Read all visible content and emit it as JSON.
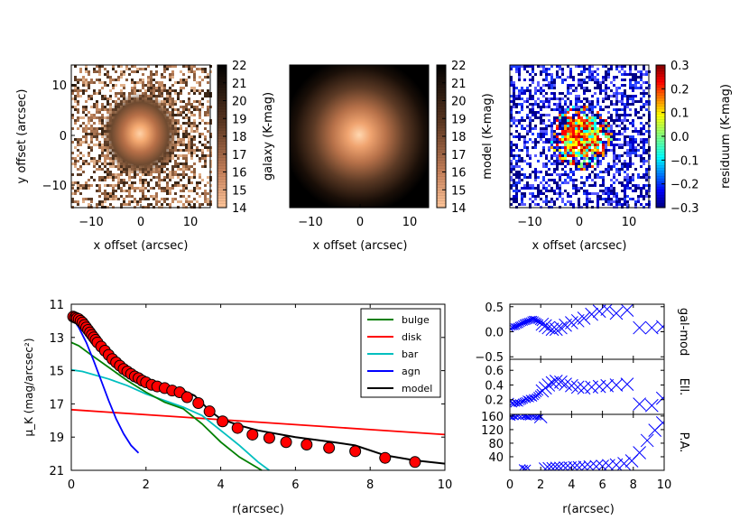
{
  "colors": {
    "bulge": "#007f00",
    "disk": "#ff0000",
    "bar": "#00bfbf",
    "agn": "#0000ff",
    "model": "#000000",
    "data_points": "#ff0000",
    "cross_markers": "#0000ff",
    "copper_light": "#ffc69a",
    "copper_dark": "#5a3620"
  },
  "images": {
    "galaxy": {
      "cbar_label": "galaxy (K-mag)",
      "cbar_ticks": [
        "22",
        "21",
        "20",
        "19",
        "18",
        "17",
        "16",
        "15",
        "14"
      ],
      "xlabel": "x offset (arcsec)",
      "ylabel": "y offset (arcsec)",
      "xticks": [
        "−10",
        "0",
        "10"
      ],
      "yticks": [
        "10",
        "0",
        "−10"
      ]
    },
    "model": {
      "cbar_label": "model (K-mag)",
      "cbar_ticks": [
        "22",
        "21",
        "20",
        "19",
        "18",
        "17",
        "16",
        "15",
        "14"
      ],
      "xlabel": "x offset (arcsec)",
      "xticks": [
        "−10",
        "0",
        "10"
      ]
    },
    "residual": {
      "cbar_label": "residuum (K-mag)",
      "cbar_ticks": [
        "0.3",
        "0.2",
        "0.1",
        "0.0",
        "−0.1",
        "−0.2",
        "−0.3"
      ],
      "xlabel": "x offset (arcsec)",
      "xticks": [
        "−10",
        "0",
        "10"
      ]
    }
  },
  "chart_data": [
    {
      "type": "line",
      "title": "",
      "xlabel": "r(arcsec)",
      "ylabel": "μ_K (mag/arcsec²)",
      "xlim": [
        0,
        10
      ],
      "ylim": [
        21,
        11
      ],
      "xticks": [
        "0",
        "2",
        "4",
        "6",
        "8",
        "10"
      ],
      "yticks": [
        "11",
        "13",
        "15",
        "17",
        "19",
        "21"
      ],
      "legend_position": "top-right",
      "series": [
        {
          "name": "bulge",
          "x": [
            0,
            0.2,
            0.5,
            1,
            1.5,
            2,
            2.5,
            3,
            3.5,
            4,
            4.5,
            5.1
          ],
          "y": [
            13.3,
            13.5,
            14.0,
            14.8,
            15.6,
            16.3,
            16.9,
            17.3,
            18.2,
            19.3,
            20.2,
            21.0
          ]
        },
        {
          "name": "disk",
          "x": [
            0,
            2,
            4,
            6,
            8,
            10
          ],
          "y": [
            17.35,
            17.65,
            17.95,
            18.25,
            18.55,
            18.85
          ]
        },
        {
          "name": "bar",
          "x": [
            0,
            0.3,
            1,
            1.5,
            2,
            2.5,
            3,
            3.5,
            4,
            4.5,
            5,
            5.3
          ],
          "y": [
            14.95,
            15.05,
            15.5,
            15.9,
            16.4,
            16.8,
            17.2,
            17.7,
            18.6,
            19.5,
            20.5,
            21.0
          ]
        },
        {
          "name": "agn",
          "x": [
            0.05,
            0.2,
            0.4,
            0.6,
            0.8,
            1.0,
            1.2,
            1.4,
            1.6,
            1.8
          ],
          "y": [
            11.9,
            12.4,
            13.3,
            14.4,
            15.6,
            16.8,
            17.9,
            18.8,
            19.5,
            19.95
          ]
        },
        {
          "name": "model",
          "x": [
            0,
            0.1,
            0.3,
            0.5,
            0.7,
            1,
            1.3,
            1.6,
            2,
            2.5,
            3,
            3.3,
            3.7,
            4,
            4.5,
            5,
            6,
            7,
            7.6,
            8.4,
            9.2,
            10
          ],
          "y": [
            11.7,
            11.75,
            12.2,
            12.95,
            13.6,
            14.3,
            14.85,
            15.25,
            15.6,
            15.85,
            16.2,
            16.5,
            17.4,
            17.9,
            18.3,
            18.6,
            19.0,
            19.3,
            19.5,
            20.1,
            20.4,
            20.6
          ]
        }
      ],
      "data_points": {
        "name": "data",
        "x": [
          0.05,
          0.1,
          0.15,
          0.2,
          0.25,
          0.3,
          0.35,
          0.4,
          0.45,
          0.5,
          0.55,
          0.6,
          0.65,
          0.7,
          0.8,
          0.9,
          1.0,
          1.1,
          1.2,
          1.3,
          1.4,
          1.5,
          1.6,
          1.7,
          1.8,
          1.9,
          2.0,
          2.15,
          2.3,
          2.5,
          2.7,
          2.9,
          3.1,
          3.4,
          3.7,
          4.05,
          4.45,
          4.85,
          5.3,
          5.75,
          6.3,
          6.9,
          7.6,
          8.4,
          9.2
        ],
        "y": [
          11.75,
          11.8,
          11.85,
          11.9,
          12.0,
          12.1,
          12.25,
          12.4,
          12.55,
          12.7,
          12.85,
          13.0,
          13.15,
          13.3,
          13.55,
          13.8,
          14.05,
          14.3,
          14.5,
          14.7,
          14.9,
          15.05,
          15.2,
          15.35,
          15.45,
          15.6,
          15.7,
          15.85,
          15.95,
          16.05,
          16.2,
          16.3,
          16.6,
          16.95,
          17.45,
          18.05,
          18.45,
          18.85,
          19.05,
          19.3,
          19.45,
          19.65,
          19.85,
          20.25,
          20.5
        ]
      }
    },
    {
      "type": "scatter",
      "ylabel": "gal-mod",
      "xlim": [
        0,
        10
      ],
      "ylim": [
        -0.55,
        0.55
      ],
      "yticks": [
        "0.5",
        "0.0",
        "−0.5"
      ],
      "x": [
        0.05,
        0.15,
        0.25,
        0.35,
        0.45,
        0.55,
        0.65,
        0.75,
        0.85,
        0.95,
        1.05,
        1.15,
        1.25,
        1.35,
        1.45,
        1.55,
        1.65,
        1.75,
        1.85,
        1.95,
        2.1,
        2.3,
        2.5,
        2.75,
        3.0,
        3.3,
        3.6,
        4.0,
        4.4,
        4.8,
        5.3,
        5.8,
        6.3,
        6.9,
        7.6,
        8.4,
        9.2,
        9.9
      ],
      "y": [
        0.06,
        0.09,
        0.1,
        0.1,
        0.11,
        0.13,
        0.14,
        0.16,
        0.18,
        0.19,
        0.2,
        0.21,
        0.22,
        0.24,
        0.25,
        0.25,
        0.24,
        0.22,
        0.2,
        0.18,
        0.15,
        0.12,
        0.08,
        0.05,
        0.05,
        0.08,
        0.13,
        0.18,
        0.22,
        0.27,
        0.35,
        0.41,
        0.45,
        0.37,
        0.43,
        0.08,
        0.08,
        0.1
      ]
    },
    {
      "type": "scatter",
      "ylabel": "Ell.",
      "xlim": [
        0,
        10
      ],
      "ylim": [
        0.0,
        0.75
      ],
      "yticks": [
        "0.6",
        "0.4",
        "0.2"
      ],
      "x": [
        0.05,
        0.15,
        0.25,
        0.35,
        0.45,
        0.55,
        0.65,
        0.75,
        0.85,
        0.95,
        1.05,
        1.15,
        1.25,
        1.35,
        1.45,
        1.55,
        1.65,
        1.75,
        1.85,
        1.95,
        2.1,
        2.3,
        2.5,
        2.75,
        3.0,
        3.3,
        3.6,
        4.0,
        4.4,
        4.8,
        5.3,
        5.8,
        6.3,
        6.9,
        7.6,
        8.4,
        9.2,
        9.9
      ],
      "y": [
        0.18,
        0.15,
        0.14,
        0.16,
        0.15,
        0.16,
        0.15,
        0.17,
        0.18,
        0.19,
        0.21,
        0.2,
        0.22,
        0.21,
        0.23,
        0.22,
        0.24,
        0.26,
        0.28,
        0.3,
        0.32,
        0.36,
        0.4,
        0.43,
        0.45,
        0.44,
        0.41,
        0.39,
        0.37,
        0.36,
        0.37,
        0.38,
        0.39,
        0.4,
        0.41,
        0.14,
        0.12,
        0.22
      ]
    },
    {
      "type": "scatter",
      "ylabel": "P.A.",
      "xlim": [
        0,
        10
      ],
      "ylim": [
        0,
        165
      ],
      "yticks": [
        "160",
        "120",
        "80",
        "40"
      ],
      "x": [
        0.05,
        0.15,
        0.25,
        0.35,
        0.5,
        0.7,
        0.9,
        1.0,
        1.1,
        1.2,
        1.35,
        1.5,
        1.65,
        1.8,
        1.9,
        2.0,
        0.8,
        0.95,
        1.15,
        2.3,
        2.55,
        2.8,
        3.05,
        3.3,
        3.6,
        3.9,
        4.2,
        4.5,
        4.85,
        5.2,
        5.6,
        6.0,
        6.4,
        6.9,
        7.4,
        7.9,
        8.4,
        8.9,
        9.4,
        9.9
      ],
      "y": [
        158,
        156,
        160,
        158,
        160,
        158,
        159,
        160,
        158,
        157,
        159,
        160,
        158,
        157,
        159,
        158,
        8,
        6,
        7,
        4,
        5,
        5,
        6,
        6,
        7,
        7,
        8,
        8,
        9,
        10,
        11,
        12,
        14,
        16,
        20,
        28,
        52,
        88,
        118,
        140
      ]
    }
  ],
  "profile_legend": [
    "bulge",
    "disk",
    "bar",
    "agn",
    "model"
  ],
  "small_xticks": [
    "0",
    "2",
    "4",
    "6",
    "8",
    "10"
  ],
  "small_xlabel": "r(arcsec)"
}
